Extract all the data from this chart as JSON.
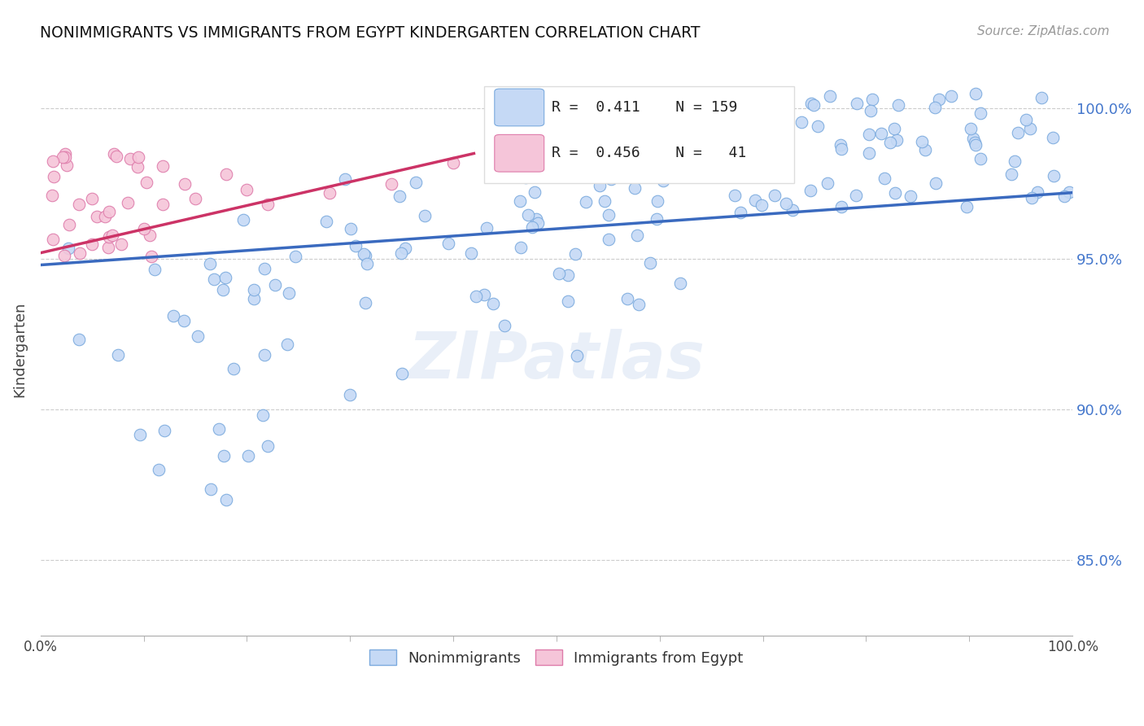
{
  "title": "NONIMMIGRANTS VS IMMIGRANTS FROM EGYPT KINDERGARTEN CORRELATION CHART",
  "source": "Source: ZipAtlas.com",
  "ylabel": "Kindergarten",
  "xlabel": "",
  "x_min": 0.0,
  "x_max": 1.0,
  "y_min": 0.825,
  "y_max": 1.015,
  "y_ticks": [
    0.85,
    0.9,
    0.95,
    1.0
  ],
  "y_tick_labels": [
    "85.0%",
    "90.0%",
    "95.0%",
    "100.0%"
  ],
  "background_color": "#ffffff",
  "grid_color": "#cccccc",
  "watermark": "ZIPatlas",
  "nonimmigrants_color": "#c5d9f5",
  "nonimmigrants_edge_color": "#7baade",
  "immigrants_color": "#f5c5d9",
  "immigrants_edge_color": "#de7baa",
  "trend_nonimmigrants_color": "#3a6abf",
  "trend_immigrants_color": "#cc3366",
  "R_nonimmigrants": 0.411,
  "N_nonimmigrants": 159,
  "R_immigrants": 0.456,
  "N_immigrants": 41,
  "trend_nonimm_x0": 0.0,
  "trend_nonimm_y0": 0.948,
  "trend_nonimm_x1": 1.0,
  "trend_nonimm_y1": 0.972,
  "trend_imm_x0": 0.0,
  "trend_imm_y0": 0.952,
  "trend_imm_x1": 0.42,
  "trend_imm_y1": 0.985
}
